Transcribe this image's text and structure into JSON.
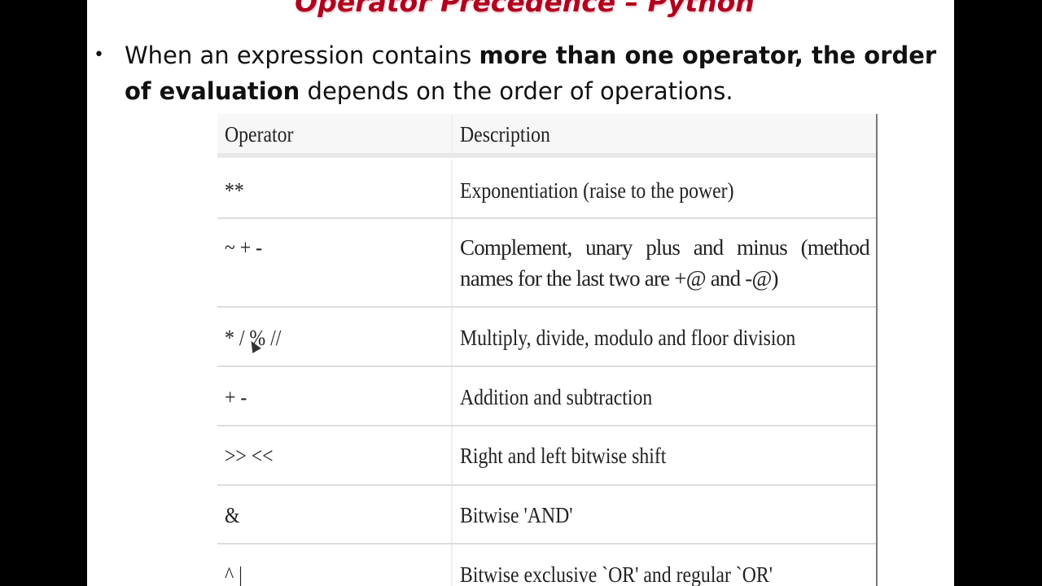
{
  "slide": {
    "title": "Operator Precedence – Python",
    "bullet": {
      "text_1": "When an expression contains ",
      "bold_1": "more than one operator, the order of evaluation",
      "text_2": " depends on the order of operations."
    },
    "table": {
      "headers": [
        "Operator",
        "Description"
      ],
      "rows": [
        {
          "operator": "**",
          "description": "Exponentiation (raise to the power)"
        },
        {
          "operator": "~ + -",
          "description": "Complement, unary plus and minus (method names for the last two are +@ and -@)"
        },
        {
          "operator": "* / % //",
          "description": "Multiply, divide, modulo and floor division"
        },
        {
          "operator": "+ -",
          "description": "Addition and subtraction"
        },
        {
          "operator": ">> <<",
          "description": "Right and left bitwise shift"
        },
        {
          "operator": "&",
          "description": "Bitwise 'AND'"
        },
        {
          "operator": "^ |",
          "description": "Bitwise exclusive `OR' and regular `OR'"
        }
      ]
    },
    "colors": {
      "title": "#b0001e",
      "background": "#ffffff",
      "sidebars": "#000000"
    }
  }
}
